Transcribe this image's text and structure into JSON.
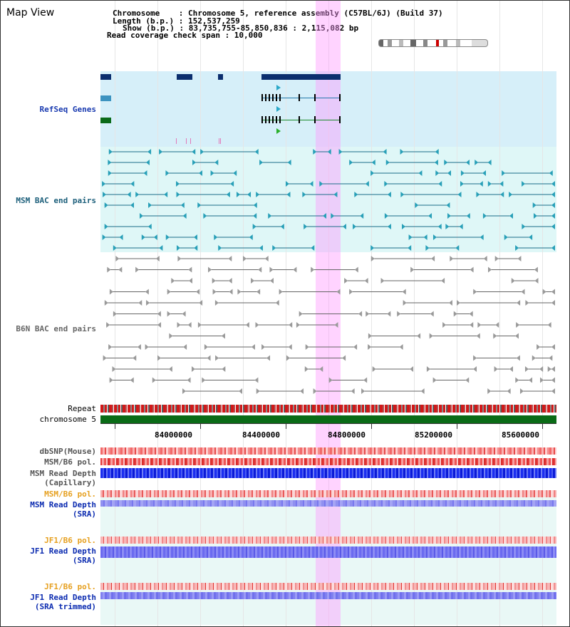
{
  "view_title": "Map View",
  "info": {
    "chromosome_line": "Chromosome    : Chromosome 5, reference assembly (C57BL/6J) (Build 37)",
    "length_line": "Length (b.p.) : 152,537,259",
    "show_line": "Show (b.p.) : 83,735,755-85,850,836 : 2,115,082 bp",
    "coverage_line": "Read coverage check span : 10,000"
  },
  "tracks": {
    "refseq": "RefSeq Genes",
    "msm_bac": "MSM BAC end pairs",
    "b6n_bac": "B6N BAC end pairs",
    "repeat": "Repeat",
    "chromosome": "chromosome 5",
    "dbsnp": "dbSNP(Mouse)",
    "msm_b6_pol_1": "MSM/B6 pol.",
    "msm_depth_cap": "MSM Read Depth\n(Capillary)",
    "msm_b6_pol_2": "MSM/B6 pol.",
    "msm_depth_sra": "MSM Read Depth\n(SRA)",
    "jf1_b6_pol_1": "JF1/B6 pol.",
    "jf1_depth_sra": "JF1 Read Depth\n(SRA)",
    "jf1_b6_pol_2": "JF1/B6 pol.",
    "jf1_depth_trim": "JF1 Read Depth\n(SRA trimmed)"
  },
  "axis_ticks": [
    "84000000",
    "84400000",
    "84800000",
    "85200000",
    "85600000"
  ],
  "colors": {
    "refseq_label": "#1a3bb0",
    "msm_label": "#1b5e7a",
    "b6n_label": "#666666",
    "orange_label": "#e6a020",
    "blue_label": "#0b2bb0",
    "highlight": "#ff99ff"
  }
}
